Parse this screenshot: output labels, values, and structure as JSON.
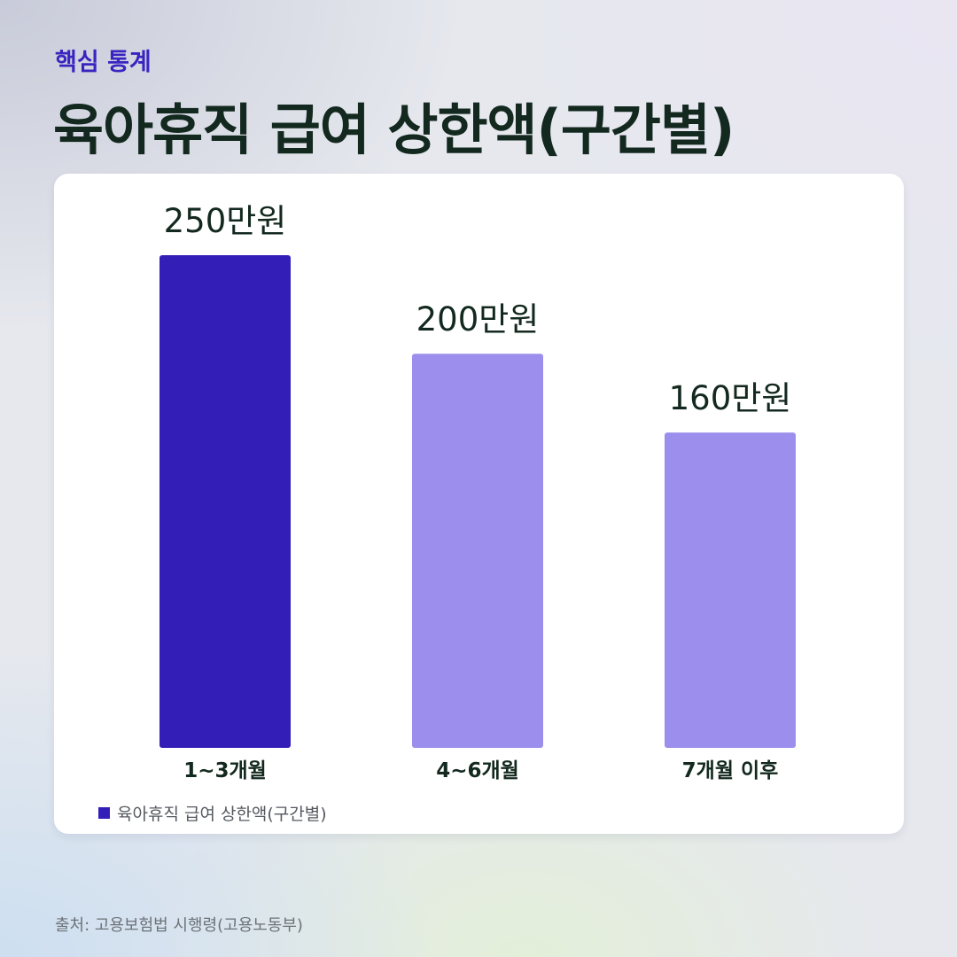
{
  "header": {
    "kicker": "핵심 통계",
    "title": "육아휴직 급여 상한액(구간별)"
  },
  "chart_data": {
    "type": "bar",
    "title": "육아휴직 급여 상한액(구간별)",
    "categories": [
      "1~3개월",
      "4~6개월",
      "7개월 이후"
    ],
    "series": [
      {
        "name": "육아휴직 급여 상한액(구간별)",
        "values": [
          250,
          200,
          160
        ]
      }
    ],
    "value_labels": [
      "250만원",
      "200만원",
      "160만원"
    ],
    "unit": "만원",
    "ylim": [
      0,
      250
    ],
    "grid": false,
    "legend_position": "bottom-left",
    "bar_colors": [
      "#341eb8",
      "#9b8eec",
      "#9b8eec"
    ]
  },
  "legend": {
    "label": "육아휴직 급여 상한액(구간별)",
    "color": "#341eb8"
  },
  "source": "출처: 고용보험법 시행령(고용노동부)"
}
